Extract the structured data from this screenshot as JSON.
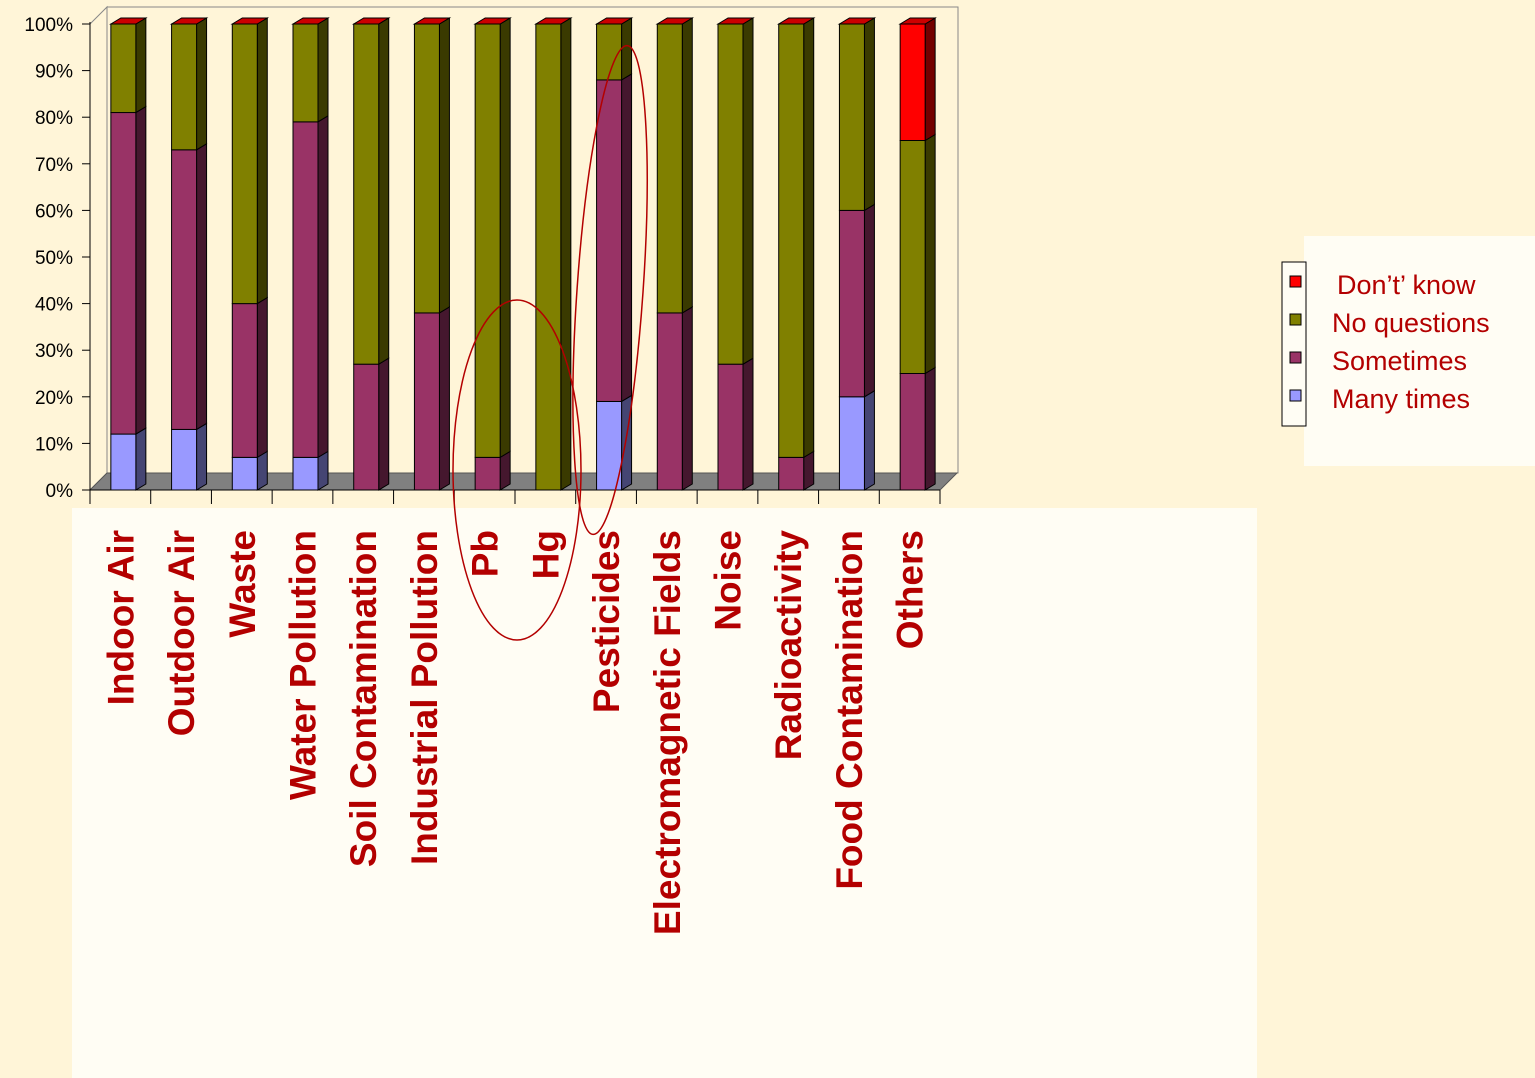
{
  "chart_data": {
    "type": "bar",
    "stacked": true,
    "percent_scale": true,
    "categories": [
      "Indoor Air",
      "Outdoor Air",
      "Waste",
      "Water Pollution",
      "Soil Contamination",
      "Industrial Pollution",
      "Pb",
      "Hg",
      "Pesticides",
      "Electromagnetic Fields",
      "Noise",
      "Radioactivity",
      "Food Contamination",
      "Others"
    ],
    "series": [
      {
        "name": "Many times",
        "color": "#9999FF",
        "values": [
          12,
          13,
          7,
          7,
          0,
          0,
          0,
          0,
          19,
          0,
          0,
          0,
          20,
          0
        ]
      },
      {
        "name": "Sometimes",
        "color": "#993366",
        "values": [
          69,
          60,
          33,
          72,
          27,
          38,
          7,
          0,
          69,
          38,
          27,
          7,
          40,
          25
        ]
      },
      {
        "name": "No questions",
        "color": "#808000",
        "values": [
          19,
          27,
          60,
          21,
          73,
          62,
          93,
          100,
          12,
          62,
          73,
          93,
          40,
          50
        ]
      },
      {
        "name": "Don’t’ know",
        "color": "#FF0000",
        "values": [
          0,
          0,
          0,
          0,
          0,
          0,
          0,
          0,
          0,
          0,
          0,
          0,
          0,
          25
        ]
      }
    ],
    "ylim": [
      0,
      100
    ],
    "yticks": [
      "0%",
      "10%",
      "20%",
      "30%",
      "40%",
      "50%",
      "60%",
      "70%",
      "80%",
      "90%",
      "100%"
    ],
    "legend_position": "right",
    "legend_order": [
      "Don’t’ know",
      "No questions",
      "Sometimes",
      "Many times"
    ],
    "annotations": [
      "red ellipse around Pb and Hg",
      "red ellipse around Pesticides"
    ]
  }
}
